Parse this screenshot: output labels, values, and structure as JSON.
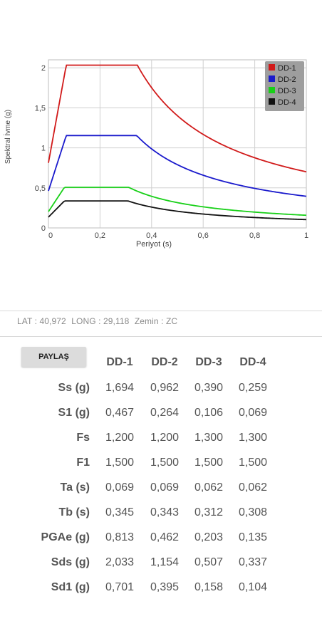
{
  "chart_data": {
    "type": "line",
    "ylabel": "Spektral İvme (g)",
    "xlabel": "Periyot (s)",
    "xlim": [
      0,
      1
    ],
    "ylim": [
      0,
      2.1
    ],
    "x_ticks": [
      "0",
      "0,2",
      "0,4",
      "0,6",
      "0,8",
      "1"
    ],
    "y_ticks": [
      "0",
      "0,5",
      "1",
      "1,5",
      "2"
    ],
    "grid": true,
    "legend_position": "top-right",
    "series": [
      {
        "name": "DD-1",
        "color": "#d11a1a",
        "params": {
          "sds": 2.033,
          "sd1": 0.701,
          "pga": 0.813,
          "ta": 0.069,
          "tb": 0.345
        }
      },
      {
        "name": "DD-2",
        "color": "#1a1acc",
        "params": {
          "sds": 1.154,
          "sd1": 0.395,
          "pga": 0.462,
          "ta": 0.069,
          "tb": 0.343
        }
      },
      {
        "name": "DD-3",
        "color": "#18d018",
        "params": {
          "sds": 0.507,
          "sd1": 0.158,
          "pga": 0.203,
          "ta": 0.062,
          "tb": 0.312
        }
      },
      {
        "name": "DD-4",
        "color": "#111111",
        "params": {
          "sds": 0.337,
          "sd1": 0.104,
          "pga": 0.135,
          "ta": 0.062,
          "tb": 0.308
        }
      }
    ]
  },
  "info": {
    "lat": "LAT : 40,972",
    "long": "LONG : 29,118",
    "zemin": "Zemin : ZC"
  },
  "share_label": "PAYLAŞ",
  "table": {
    "columns": [
      "DD-1",
      "DD-2",
      "DD-3",
      "DD-4"
    ],
    "rows": [
      {
        "label": "Ss (g)",
        "values": [
          "1,694",
          "0,962",
          "0,390",
          "0,259"
        ]
      },
      {
        "label": "S1 (g)",
        "values": [
          "0,467",
          "0,264",
          "0,106",
          "0,069"
        ]
      },
      {
        "label": "Fs",
        "values": [
          "1,200",
          "1,200",
          "1,300",
          "1,300"
        ]
      },
      {
        "label": "F1",
        "values": [
          "1,500",
          "1,500",
          "1,500",
          "1,500"
        ]
      },
      {
        "label": "Ta (s)",
        "values": [
          "0,069",
          "0,069",
          "0,062",
          "0,062"
        ]
      },
      {
        "label": "Tb (s)",
        "values": [
          "0,345",
          "0,343",
          "0,312",
          "0,308"
        ]
      },
      {
        "label": "PGAe (g)",
        "values": [
          "0,813",
          "0,462",
          "0,203",
          "0,135"
        ]
      },
      {
        "label": "Sds (g)",
        "values": [
          "2,033",
          "1,154",
          "0,507",
          "0,337"
        ]
      },
      {
        "label": "Sd1 (g)",
        "values": [
          "0,701",
          "0,395",
          "0,158",
          "0,104"
        ]
      }
    ]
  }
}
